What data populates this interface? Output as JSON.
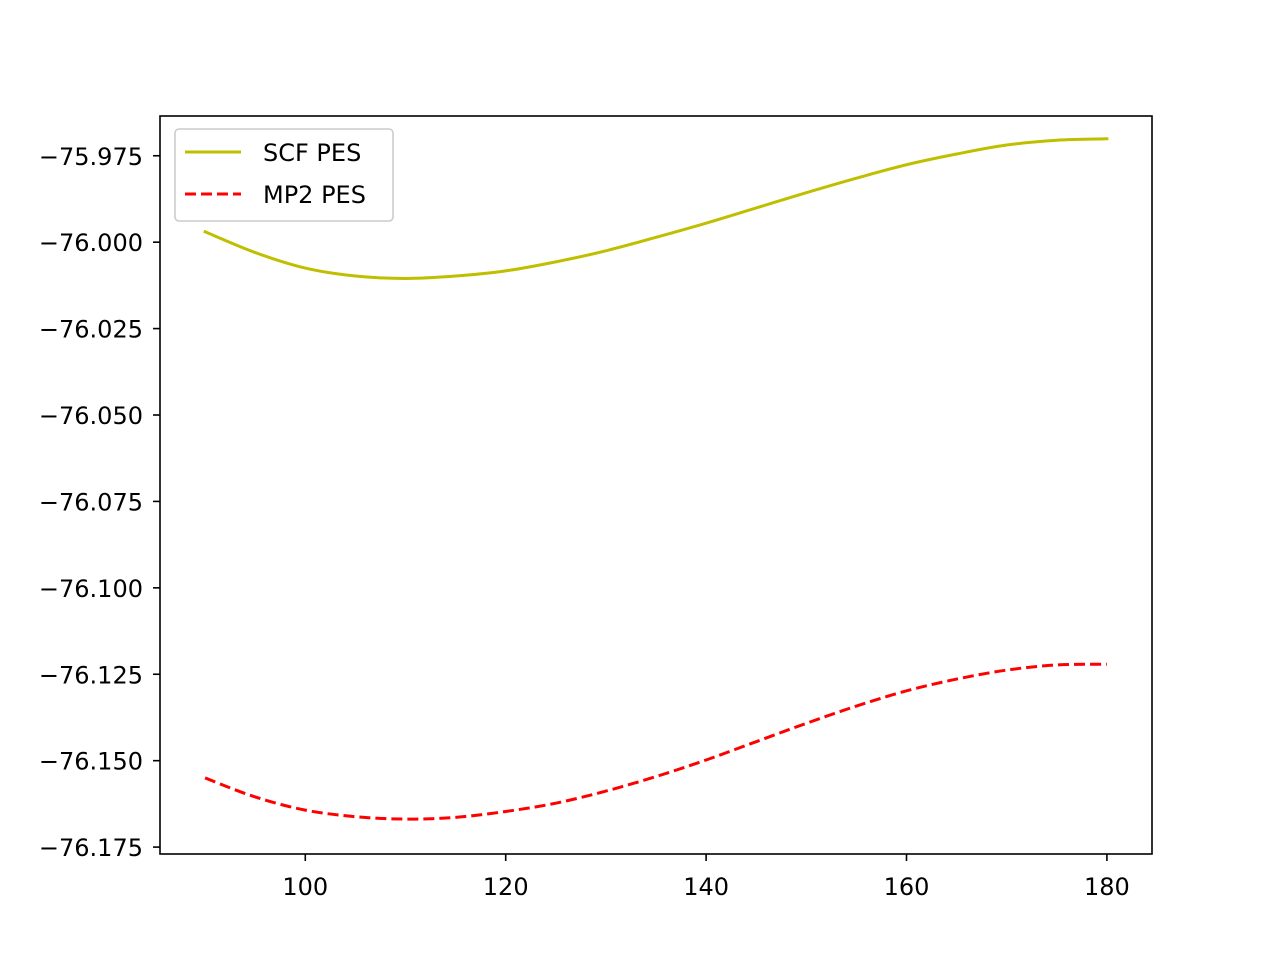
{
  "chart_data": {
    "type": "line",
    "title": "",
    "xlabel": "",
    "ylabel": "",
    "xlim": [
      85.5,
      184.5
    ],
    "ylim": [
      -76.177,
      -75.9635
    ],
    "grid": false,
    "legend_position": "top-left",
    "x_ticks": [
      100,
      120,
      140,
      160,
      180
    ],
    "x_tick_labels": [
      "100",
      "120",
      "140",
      "160",
      "180"
    ],
    "y_ticks": [
      -75.975,
      -76.0,
      -76.025,
      -76.05,
      -76.075,
      -76.1,
      -76.125,
      -76.15,
      -76.175
    ],
    "y_tick_labels": [
      "−75.975",
      "−76.000",
      "−76.025",
      "−76.050",
      "−76.075",
      "−76.100",
      "−76.125",
      "−76.150",
      "−76.175"
    ],
    "x": [
      90,
      95,
      100,
      105,
      110,
      115,
      120,
      125,
      130,
      135,
      140,
      145,
      150,
      155,
      160,
      165,
      170,
      175,
      180
    ],
    "series": [
      {
        "name": "SCF PES",
        "color": "#bfbf00",
        "style": "solid",
        "values": [
          -75.997,
          -76.003,
          -76.0075,
          -76.0098,
          -76.0105,
          -76.0098,
          -76.0083,
          -76.0057,
          -76.0025,
          -75.9986,
          -75.9945,
          -75.9901,
          -75.9857,
          -75.9815,
          -75.9776,
          -75.9745,
          -75.9719,
          -75.9705,
          -75.9701
        ]
      },
      {
        "name": "MP2 PES",
        "color": "#ff0000",
        "style": "dashed",
        "values": [
          -76.155,
          -76.1605,
          -76.1643,
          -76.1662,
          -76.1669,
          -76.1664,
          -76.1647,
          -76.1623,
          -76.1588,
          -76.1546,
          -76.1498,
          -76.1445,
          -76.1392,
          -76.1342,
          -76.1298,
          -76.1264,
          -76.1238,
          -76.1223,
          -76.1221
        ]
      }
    ]
  }
}
